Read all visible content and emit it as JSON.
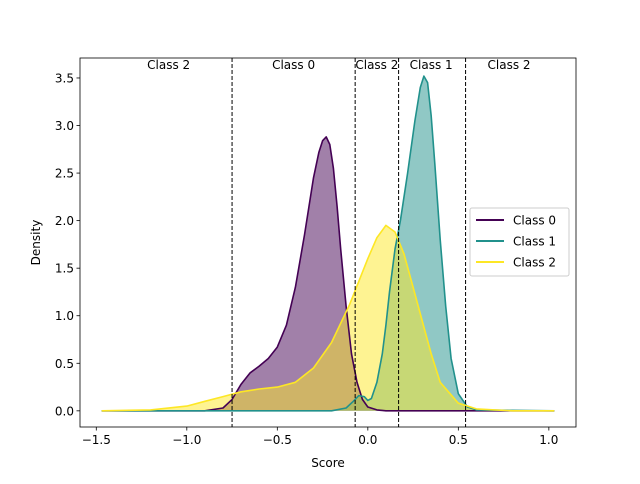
{
  "chart_data": {
    "type": "area",
    "title": "",
    "xlabel": "Score",
    "ylabel": "Density",
    "xlim": [
      -1.59,
      1.15
    ],
    "ylim": [
      -0.17,
      3.71
    ],
    "xticks": [
      -1.5,
      -1.0,
      -0.5,
      0.0,
      0.5,
      1.0
    ],
    "xtick_labels": [
      "−1.5",
      "−1.0",
      "−0.5",
      "0.0",
      "0.5",
      "1.0"
    ],
    "yticks": [
      0.0,
      0.5,
      1.0,
      1.5,
      2.0,
      2.5,
      3.0,
      3.5
    ],
    "ytick_labels": [
      "0.0",
      "0.5",
      "1.0",
      "1.5",
      "2.0",
      "2.5",
      "3.0",
      "3.5"
    ],
    "grid": false,
    "legend_position": "center-right",
    "thresholds": [
      -0.75,
      -0.07,
      0.17,
      0.54
    ],
    "region_labels": [
      {
        "text": "Class 2",
        "x": -1.1
      },
      {
        "text": "Class 0",
        "x": -0.41
      },
      {
        "text": "Class 2",
        "x": 0.05
      },
      {
        "text": "Class 1",
        "x": 0.35
      },
      {
        "text": "Class 2",
        "x": 0.78
      }
    ],
    "series": [
      {
        "name": "Class 0",
        "color": "#440154",
        "x": [
          -1.47,
          -1.0,
          -0.9,
          -0.8,
          -0.75,
          -0.7,
          -0.65,
          -0.6,
          -0.55,
          -0.5,
          -0.45,
          -0.4,
          -0.35,
          -0.3,
          -0.27,
          -0.25,
          -0.23,
          -0.21,
          -0.19,
          -0.17,
          -0.15,
          -0.12,
          -0.09,
          -0.06,
          -0.03,
          0.0,
          0.05,
          0.1,
          0.2,
          0.5,
          1.03
        ],
        "y": [
          0.0,
          0.0,
          0.0,
          0.03,
          0.12,
          0.28,
          0.4,
          0.47,
          0.55,
          0.67,
          0.9,
          1.3,
          1.85,
          2.45,
          2.72,
          2.84,
          2.88,
          2.8,
          2.55,
          2.15,
          1.7,
          1.1,
          0.6,
          0.3,
          0.12,
          0.04,
          0.01,
          0.0,
          0.0,
          0.0,
          0.0
        ]
      },
      {
        "name": "Class 1",
        "color": "#21918c",
        "x": [
          -1.47,
          -0.5,
          -0.2,
          -0.12,
          -0.08,
          -0.05,
          -0.02,
          0.0,
          0.02,
          0.05,
          0.08,
          0.1,
          0.12,
          0.15,
          0.18,
          0.22,
          0.26,
          0.29,
          0.31,
          0.33,
          0.35,
          0.37,
          0.4,
          0.43,
          0.46,
          0.5,
          0.55,
          0.6,
          1.03
        ],
        "y": [
          0.0,
          0.0,
          0.0,
          0.03,
          0.1,
          0.16,
          0.15,
          0.11,
          0.13,
          0.3,
          0.6,
          0.9,
          1.25,
          1.7,
          2.0,
          2.5,
          3.05,
          3.4,
          3.52,
          3.45,
          3.1,
          2.6,
          1.8,
          1.1,
          0.55,
          0.18,
          0.04,
          0.01,
          0.0
        ]
      },
      {
        "name": "Class 2",
        "color": "#fde725",
        "x": [
          -1.47,
          -1.2,
          -1.0,
          -0.9,
          -0.8,
          -0.7,
          -0.6,
          -0.5,
          -0.4,
          -0.3,
          -0.2,
          -0.1,
          0.0,
          0.05,
          0.1,
          0.15,
          0.2,
          0.25,
          0.3,
          0.35,
          0.4,
          0.5,
          0.6,
          0.7,
          0.8,
          1.03
        ],
        "y": [
          0.0,
          0.01,
          0.05,
          0.1,
          0.15,
          0.2,
          0.23,
          0.25,
          0.3,
          0.45,
          0.72,
          1.12,
          1.6,
          1.82,
          1.95,
          1.88,
          1.65,
          1.3,
          0.95,
          0.6,
          0.3,
          0.08,
          0.02,
          0.01,
          0.0,
          0.0
        ]
      }
    ]
  }
}
